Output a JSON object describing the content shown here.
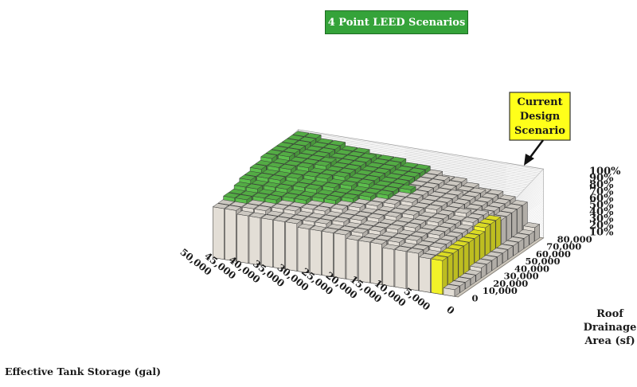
{
  "chart_data": {
    "type": "bar3d",
    "title": "",
    "x_axis": {
      "title": "Effective Tank Storage (gal)",
      "ticks": [
        "50,000",
        "45,000",
        "40,000",
        "35,000",
        "30,000",
        "25,000",
        "20,000",
        "15,000",
        "10,000",
        "5,000",
        "0"
      ],
      "values": [
        50000,
        45000,
        40000,
        35000,
        30000,
        25000,
        20000,
        15000,
        10000,
        5000,
        0
      ]
    },
    "y_axis": {
      "title_lines": [
        "Roof",
        "Drainage",
        "Area (sf)"
      ],
      "ticks": [
        "0",
        "10,000",
        "20,000",
        "30,000",
        "40,000",
        "50,000",
        "60,000",
        "70,000",
        "80,000"
      ],
      "values": [
        0,
        10000,
        20000,
        30000,
        40000,
        50000,
        60000,
        70000,
        80000
      ]
    },
    "z_axis": {
      "ticks": [
        "10%",
        "20%",
        "30%",
        "40%",
        "50%",
        "60%",
        "70%",
        "80%",
        "90%",
        "100%"
      ],
      "range": [
        0,
        100
      ],
      "unit": "%"
    },
    "grid": true,
    "annotations": {
      "leed": "4 Point LEED Scenarios",
      "current_lines": [
        "Current",
        "Design",
        "Scenario"
      ]
    },
    "colors": {
      "bar": "#e3ded6",
      "leed": "#5cbf4c",
      "current": "#f2f229",
      "floor": "#cdc7bc",
      "wall_grid": "#c8c8c8",
      "leed_box": "#35a33a",
      "current_box": "#ffff1a"
    }
  }
}
